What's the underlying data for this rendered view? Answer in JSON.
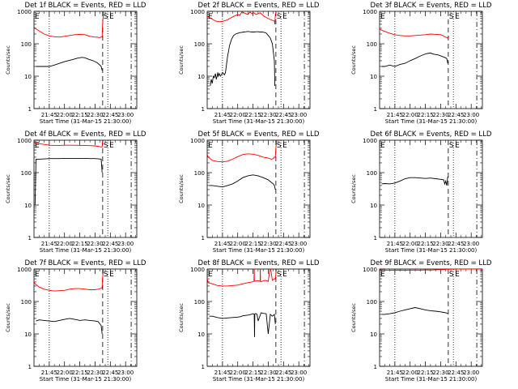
{
  "figure": {
    "background": "#ffffff",
    "axis_color": "#000000",
    "events_color": "#000000",
    "lld_color": "#ff0000",
    "time_axis": {
      "xlabel": "Start Time (31-Mar-15 21:30:00)",
      "tick_labels": [
        "21:45",
        "22:00",
        "22:15",
        "22:30",
        "22:45",
        "23:00"
      ],
      "tick_values_min": [
        15,
        30,
        45,
        60,
        75,
        90
      ],
      "xlim_min": [
        0,
        101
      ],
      "markers": [
        {
          "t": 15,
          "style": "dotted",
          "label": ""
        },
        {
          "t": 67.5,
          "style": "dashed",
          "label": "S"
        },
        {
          "t": 72.5,
          "style": "dotted",
          "label": ""
        },
        {
          "t": 95.5,
          "style": "dashdot",
          "label": ""
        }
      ],
      "marker_letters": [
        "S",
        "E"
      ],
      "corner_letter": "E"
    },
    "y_axis": {
      "ylabel": "Counts/sec",
      "scale": "log",
      "ylim": [
        1,
        1000
      ],
      "tick_labels": [
        "1",
        "10",
        "100",
        "1000"
      ],
      "tick_values": [
        1,
        10,
        100,
        1000
      ]
    }
  },
  "chart_data": [
    {
      "type": "line",
      "title": "Det 1f BLACK = Events, RED = LLD",
      "series": [
        {
          "role": "events",
          "x": [
            0,
            1,
            2,
            5,
            10,
            15,
            20,
            30,
            37,
            43,
            47,
            50,
            54,
            58,
            62,
            64,
            66,
            67
          ],
          "y": [
            null,
            null,
            20,
            20,
            20,
            20,
            22,
            28,
            32,
            36,
            38,
            37,
            33,
            30,
            26,
            23,
            20,
            15
          ]
        },
        {
          "role": "lld",
          "x": [
            0,
            1,
            5,
            10,
            15,
            20,
            25,
            30,
            35,
            40,
            45,
            50,
            55,
            60,
            62,
            64,
            66,
            67,
            67.3,
            68.3
          ],
          "y": [
            330,
            300,
            250,
            200,
            175,
            165,
            160,
            170,
            180,
            190,
            195,
            190,
            170,
            160,
            160,
            155,
            160,
            160,
            350,
            1000
          ]
        }
      ]
    },
    {
      "type": "line",
      "title": "Det 2f BLACK = Events, RED = LLD",
      "series": [
        {
          "role": "events",
          "x": [
            3,
            4,
            5,
            6,
            7,
            8,
            9,
            10,
            10.5,
            11,
            12,
            13,
            14,
            15,
            16,
            17,
            18,
            20,
            22,
            24,
            26,
            28,
            30,
            32,
            34,
            36,
            38,
            40,
            42,
            44,
            46,
            48,
            50,
            52,
            54,
            56,
            58,
            60,
            62,
            64,
            66,
            66.5
          ],
          "y": [
            5,
            8,
            6,
            10,
            9,
            12,
            8,
            11,
            13,
            10,
            12,
            10,
            11,
            13,
            12,
            11,
            13,
            40,
            90,
            140,
            180,
            200,
            210,
            220,
            225,
            230,
            235,
            240,
            235,
            230,
            230,
            235,
            235,
            230,
            232,
            225,
            215,
            180,
            150,
            100,
            30,
            5
          ]
        },
        {
          "role": "lld",
          "x": [
            0,
            4,
            8,
            12,
            16,
            20,
            22,
            24,
            26,
            28,
            30,
            32,
            34,
            36,
            38,
            40,
            42,
            44,
            46,
            48,
            50,
            52,
            54,
            56,
            58,
            60,
            62,
            64,
            66,
            66.5,
            67,
            68
          ],
          "y": [
            700,
            600,
            500,
            480,
            500,
            550,
            600,
            650,
            700,
            750,
            800,
            750,
            950,
            900,
            850,
            800,
            950,
            850,
            900,
            800,
            850,
            900,
            800,
            700,
            650,
            600,
            560,
            530,
            500,
            400,
            800,
            1000
          ]
        }
      ]
    },
    {
      "type": "line",
      "title": "Det 3f BLACK = Events, RED = LLD",
      "series": [
        {
          "role": "events",
          "x": [
            0,
            1,
            2,
            5,
            10,
            15,
            20,
            25,
            30,
            35,
            40,
            43,
            47,
            50,
            53,
            58,
            62,
            64,
            66,
            67
          ],
          "y": [
            null,
            null,
            20,
            20,
            22,
            20,
            23,
            25,
            30,
            35,
            42,
            46,
            50,
            52,
            48,
            45,
            40,
            38,
            35,
            25
          ]
        },
        {
          "role": "lld",
          "x": [
            0,
            1,
            5,
            10,
            15,
            20,
            25,
            30,
            35,
            40,
            45,
            50,
            55,
            60,
            62,
            64,
            66,
            67,
            68
          ],
          "y": [
            300,
            270,
            240,
            210,
            190,
            180,
            175,
            175,
            180,
            185,
            190,
            200,
            195,
            190,
            180,
            165,
            155,
            150,
            170
          ]
        }
      ]
    },
    {
      "type": "line",
      "title": "Det 4f BLACK = Events, RED = LLD",
      "series": [
        {
          "role": "events",
          "x": [
            0,
            1,
            2,
            5,
            10,
            15,
            20,
            25,
            30,
            35,
            40,
            45,
            50,
            55,
            60,
            64,
            66,
            67
          ],
          "y": [
            null,
            10,
            260,
            260,
            265,
            270,
            270,
            270,
            275,
            275,
            275,
            275,
            275,
            270,
            270,
            265,
            260,
            100
          ]
        },
        {
          "role": "lld",
          "x": [
            0,
            1,
            5,
            10,
            15,
            20,
            25,
            30,
            35,
            40,
            45,
            50,
            55,
            60,
            64,
            66,
            67,
            67.3,
            68.3
          ],
          "y": [
            900,
            850,
            780,
            740,
            700,
            690,
            690,
            700,
            700,
            700,
            690,
            690,
            680,
            670,
            640,
            620,
            620,
            900,
            1000
          ]
        }
      ]
    },
    {
      "type": "line",
      "title": "Det 5f BLACK = Events, RED = LLD",
      "series": [
        {
          "role": "events",
          "x": [
            0,
            1,
            2,
            5,
            10,
            15,
            20,
            25,
            30,
            35,
            40,
            45,
            50,
            55,
            60,
            63,
            65,
            66,
            67
          ],
          "y": [
            null,
            null,
            40,
            40,
            38,
            36,
            40,
            45,
            55,
            70,
            80,
            85,
            80,
            70,
            60,
            50,
            45,
            40,
            30
          ]
        },
        {
          "role": "lld",
          "x": [
            0,
            1,
            5,
            10,
            15,
            20,
            25,
            30,
            35,
            40,
            45,
            50,
            55,
            60,
            63,
            65,
            66,
            67,
            67.5,
            68.5
          ],
          "y": [
            360,
            300,
            240,
            220,
            215,
            225,
            260,
            310,
            360,
            380,
            370,
            340,
            300,
            280,
            260,
            270,
            300,
            300,
            600,
            1000
          ]
        }
      ]
    },
    {
      "type": "line",
      "title": "Det 6f BLACK = Events, RED = LLD",
      "series": [
        {
          "role": "events",
          "x": [
            0,
            1,
            2,
            5,
            10,
            15,
            20,
            25,
            30,
            35,
            40,
            45,
            50,
            55,
            60,
            63,
            64,
            65,
            66,
            67
          ],
          "y": [
            null,
            null,
            45,
            46,
            45,
            48,
            55,
            65,
            70,
            70,
            68,
            66,
            68,
            65,
            62,
            60,
            45,
            55,
            40,
            75
          ]
        },
        {
          "role": "lld",
          "x": [],
          "y": []
        }
      ]
    },
    {
      "type": "line",
      "title": "Det 7f BLACK = Events, RED = LLD",
      "series": [
        {
          "role": "events",
          "x": [
            0,
            1,
            2,
            5,
            10,
            15,
            20,
            25,
            30,
            35,
            40,
            45,
            50,
            55,
            60,
            63,
            65,
            66,
            67
          ],
          "y": [
            null,
            null,
            25,
            27,
            26,
            25,
            24,
            26,
            28,
            30,
            28,
            26,
            27,
            26,
            25,
            24,
            20,
            18,
            10
          ]
        },
        {
          "role": "lld",
          "x": [
            0,
            1,
            5,
            10,
            15,
            20,
            25,
            30,
            35,
            40,
            45,
            50,
            55,
            60,
            63,
            65,
            66,
            67,
            67.3,
            68.3
          ],
          "y": [
            420,
            350,
            280,
            240,
            220,
            210,
            215,
            220,
            240,
            250,
            250,
            240,
            230,
            230,
            240,
            250,
            260,
            260,
            500,
            1000
          ]
        }
      ]
    },
    {
      "type": "line",
      "title": "Det 8f BLACK = Events, RED = LLD",
      "series": [
        {
          "role": "events",
          "x": [
            0,
            1,
            2,
            5,
            10,
            15,
            20,
            25,
            30,
            33,
            35,
            40,
            43,
            45,
            46.2,
            46.5,
            46.8,
            47,
            48,
            49,
            50,
            53,
            55,
            58,
            60,
            62,
            64,
            66,
            67
          ],
          "y": [
            null,
            null,
            35,
            35,
            32,
            30,
            31,
            32,
            33,
            34,
            36,
            38,
            40,
            42,
            40,
            8,
            40,
            42,
            42,
            40,
            25,
            45,
            43,
            42,
            10,
            40,
            35,
            40,
            20
          ]
        },
        {
          "role": "lld",
          "x": [
            0,
            1,
            5,
            10,
            15,
            20,
            25,
            30,
            35,
            40,
            44,
            46,
            46.2,
            46.4,
            46.8,
            48,
            50,
            52,
            52.2,
            52.4,
            52.8,
            55,
            57,
            60,
            62,
            64,
            66,
            67,
            68
          ],
          "y": [
            500,
            380,
            350,
            310,
            300,
            300,
            310,
            320,
            350,
            380,
            400,
            420,
            1200,
            420,
            420,
            430,
            440,
            420,
            1200,
            420,
            410,
            430,
            450,
            420,
            1200,
            450,
            500,
            500,
            1000
          ]
        }
      ]
    },
    {
      "type": "line",
      "title": "Det 9f BLACK = Events, RED = LLD",
      "series": [
        {
          "role": "events",
          "x": [
            0,
            1,
            2,
            5,
            10,
            15,
            20,
            25,
            30,
            35,
            40,
            45,
            50,
            55,
            60,
            63,
            65,
            66,
            67
          ],
          "y": [
            null,
            null,
            40,
            40,
            42,
            45,
            50,
            55,
            60,
            65,
            60,
            55,
            52,
            50,
            48,
            46,
            45,
            44,
            42
          ]
        },
        {
          "role": "lld",
          "x": [
            0,
            1,
            5,
            10,
            15,
            20,
            25,
            30,
            35,
            40,
            45,
            50,
            55,
            60,
            65,
            70,
            75,
            80,
            85,
            90,
            95,
            101
          ],
          "y": [
            950,
            940,
            930,
            920,
            920,
            930,
            920,
            930,
            930,
            920,
            940,
            930,
            950,
            960,
            980,
            990,
            1000,
            1000,
            1000,
            1000,
            1000,
            1000
          ]
        }
      ]
    }
  ]
}
